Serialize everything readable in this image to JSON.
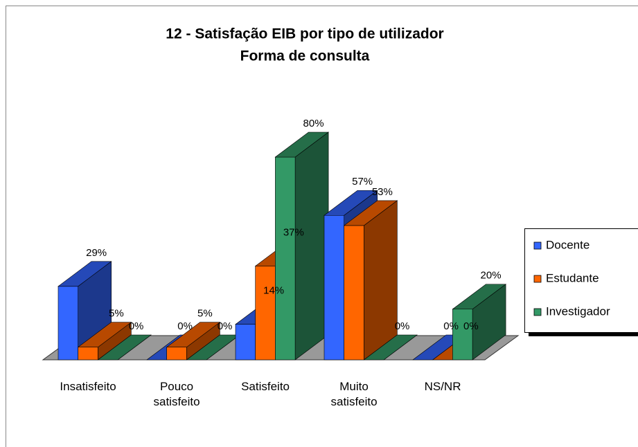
{
  "chart_data": {
    "type": "bar3d",
    "title": "12 - Satisfação EIB por tipo de utilizador",
    "subtitle": "Forma de consulta",
    "categories": [
      "Insatisfeito",
      "Pouco satisfeito",
      "Satisfeito",
      "Muito satisfeito",
      "NS/NR"
    ],
    "series": [
      {
        "name": "Docente",
        "color": "#3366ff",
        "values": [
          29,
          0,
          14,
          57,
          0
        ],
        "value_labels": [
          "29%",
          "0%",
          "14%",
          "57%",
          "0%"
        ]
      },
      {
        "name": "Estudante",
        "color": "#ff6600",
        "values": [
          5,
          5,
          37,
          53,
          0
        ],
        "value_labels": [
          "5%",
          "5%",
          "37%",
          "53%",
          "0%"
        ]
      },
      {
        "name": "Investigador",
        "color": "#339966",
        "values": [
          0,
          0,
          80,
          0,
          20
        ],
        "value_labels": [
          "0%",
          "0%",
          "80%",
          "0%",
          "20%"
        ]
      }
    ],
    "legend": "right"
  }
}
